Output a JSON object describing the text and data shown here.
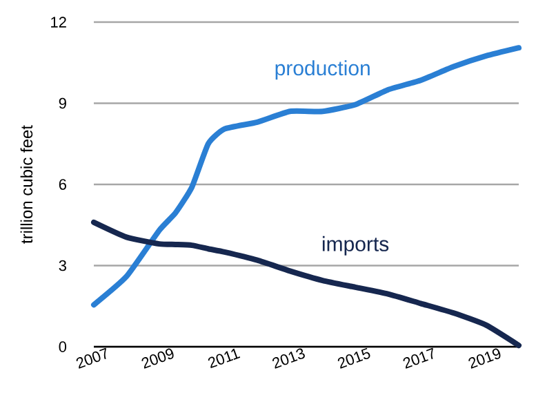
{
  "chart_data": {
    "type": "line",
    "ylabel": "trillion cubic feet",
    "x": [
      2007,
      2008,
      2009,
      2009.5,
      2010,
      2010.5,
      2011,
      2012,
      2013,
      2014,
      2015,
      2016,
      2017,
      2018,
      2019,
      2020
    ],
    "series": [
      {
        "name": "production",
        "color": "#2a7fd4",
        "values": [
          1.55,
          2.6,
          4.3,
          4.95,
          5.9,
          7.5,
          8.05,
          8.3,
          8.7,
          8.7,
          8.95,
          9.5,
          9.85,
          10.35,
          10.75,
          11.05
        ]
      },
      {
        "name": "imports",
        "color": "#16274f",
        "values": [
          4.6,
          4.05,
          3.8,
          3.78,
          3.75,
          3.62,
          3.5,
          3.2,
          2.8,
          2.45,
          2.2,
          1.95,
          1.6,
          1.25,
          0.8,
          0.05
        ]
      }
    ],
    "xlim": [
      2007,
      2020
    ],
    "xticks": [
      2007,
      2009,
      2011,
      2013,
      2015,
      2017,
      2019
    ],
    "ylim": [
      0,
      12
    ],
    "yticks": [
      0,
      3,
      6,
      9,
      12
    ],
    "grid": "y"
  }
}
